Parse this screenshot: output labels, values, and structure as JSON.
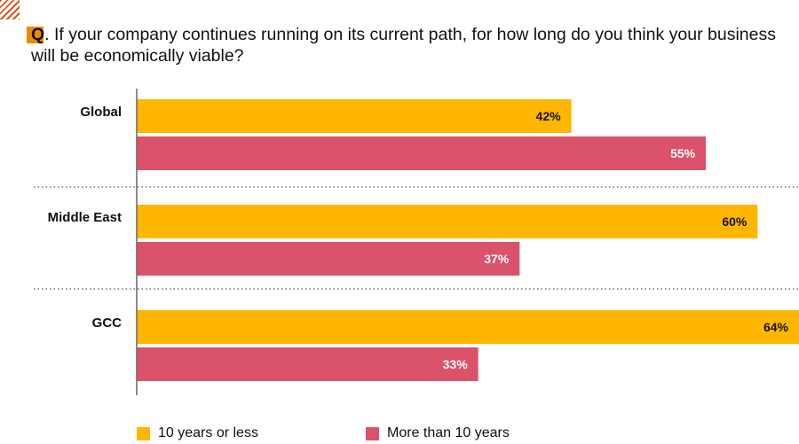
{
  "question": {
    "prefix": "Q",
    "text": ". If your company continues running on its current path, for how long do you think your business will be economically viable?"
  },
  "colors": {
    "accent": "#eb8c00",
    "series1": "#ffb600",
    "series2": "#db536a",
    "hatch": "#d9561f"
  },
  "chart_data": {
    "type": "bar",
    "orientation": "horizontal",
    "categories": [
      "Global",
      "Middle East",
      "GCC"
    ],
    "series": [
      {
        "name": "10 years or less",
        "values": [
          42,
          60,
          64
        ],
        "labels": [
          "42%",
          "60%",
          "64%"
        ],
        "color": "#ffb600"
      },
      {
        "name": "More than 10 years",
        "values": [
          55,
          37,
          33
        ],
        "labels": [
          "55%",
          "37%",
          "33%"
        ],
        "color": "#db536a"
      }
    ],
    "xlim": [
      0,
      64
    ],
    "unit": "%",
    "legend": "bottom"
  }
}
